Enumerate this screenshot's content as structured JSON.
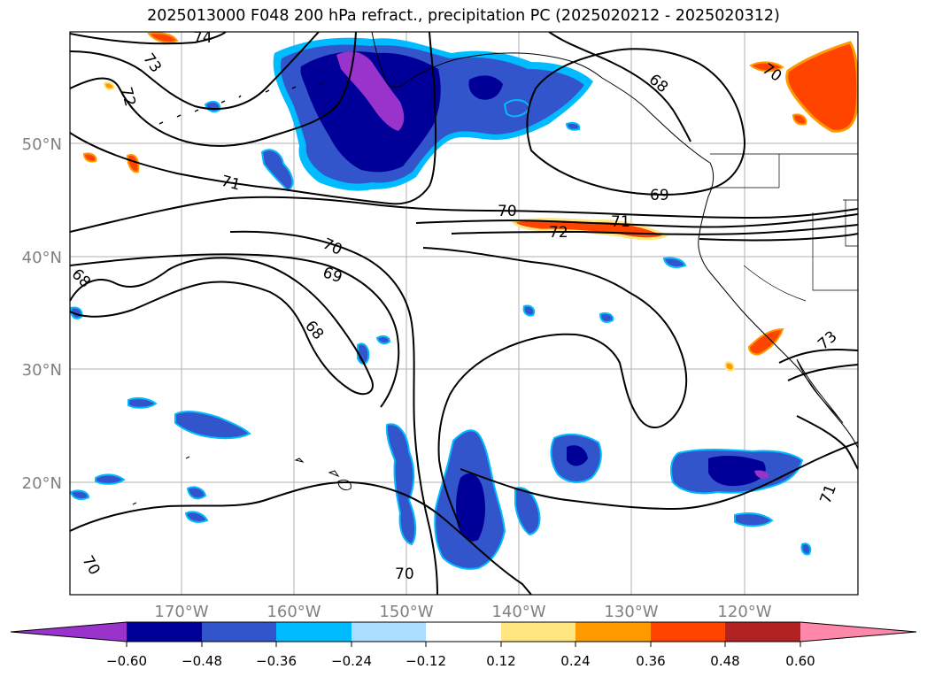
{
  "title": "2025013000 F048 200 hPa refract., precipitation PC (2025020212 - 2025020312)",
  "map": {
    "lat_ticks": [
      "50°N",
      "40°N",
      "30°N",
      "20°N"
    ],
    "lon_ticks": [
      "170°W",
      "160°W",
      "150°W",
      "140°W",
      "130°W",
      "120°W"
    ],
    "tick_color": "#808080",
    "gridlines": true,
    "contour_labels": [
      {
        "text": "74"
      },
      {
        "text": "73"
      },
      {
        "text": "72"
      },
      {
        "text": "71"
      },
      {
        "text": "70"
      },
      {
        "text": "69"
      },
      {
        "text": "68"
      },
      {
        "text": "68"
      },
      {
        "text": "69"
      },
      {
        "text": "70"
      },
      {
        "text": "72"
      },
      {
        "text": "71"
      },
      {
        "text": "68"
      },
      {
        "text": "70"
      },
      {
        "text": "73"
      },
      {
        "text": "71"
      },
      {
        "text": "70"
      },
      {
        "text": "70"
      }
    ]
  },
  "colorbar": {
    "tick_labels": [
      "−0.60",
      "−0.48",
      "−0.36",
      "−0.24",
      "−0.12",
      "0.12",
      "0.24",
      "0.36",
      "0.48",
      "0.60"
    ],
    "colors": [
      "#9933cc",
      "#000099",
      "#3355cc",
      "#00bbff",
      "#aaddff",
      "#ffffff",
      "#ffe680",
      "#ff9900",
      "#ff4400",
      "#b22222",
      "#ff88aa"
    ]
  }
}
